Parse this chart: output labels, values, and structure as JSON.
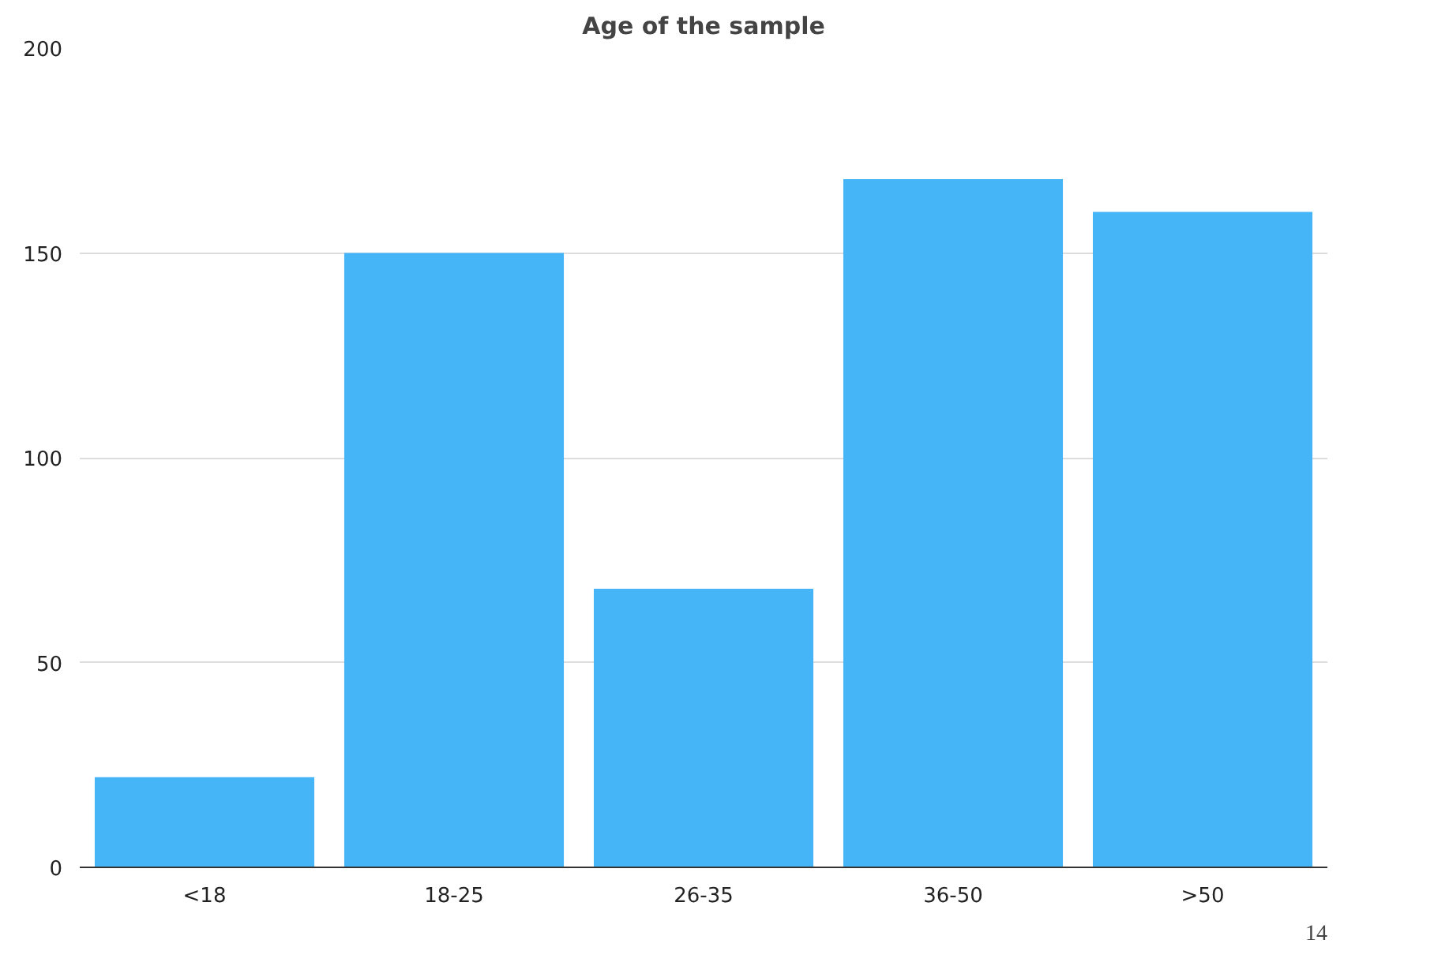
{
  "chart_data": {
    "type": "bar",
    "title": "Age of the sample",
    "categories": [
      "<18",
      "18-25",
      "26-35",
      "36-50",
      ">50"
    ],
    "values": [
      22,
      150,
      68,
      168,
      160
    ],
    "color": "#46b5f8",
    "ylim": [
      0,
      200
    ],
    "yticks": [
      0,
      50,
      100,
      150,
      200
    ],
    "grid": "y",
    "annotations": [
      "14"
    ]
  }
}
